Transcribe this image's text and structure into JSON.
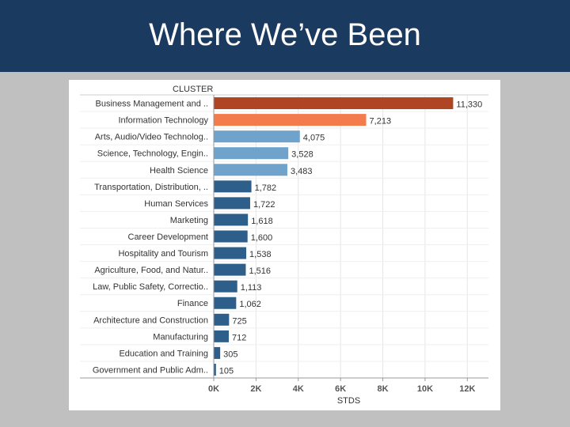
{
  "slide": {
    "title": "Where We’ve Been"
  },
  "chart_data": {
    "type": "bar",
    "orientation": "horizontal",
    "column_header": "CLUSTER",
    "xlabel": "STDS",
    "xlim": [
      0,
      13000
    ],
    "x_ticks": [
      0,
      2000,
      4000,
      6000,
      8000,
      10000,
      12000
    ],
    "x_tick_labels": [
      "0K",
      "2K",
      "4K",
      "6K",
      "8K",
      "10K",
      "12K"
    ],
    "grid": true,
    "categories": [
      "Business Management and ..",
      "Information Technology",
      "Arts, Audio/Video Technolog..",
      "Science, Technology, Engin..",
      "Health Science",
      "Transportation, Distribution, ..",
      "Human Services",
      "Marketing",
      "Career Development",
      "Hospitality and Tourism",
      "Agriculture, Food, and Natur..",
      "Law, Public Safety, Correctio..",
      "Finance",
      "Architecture and Construction",
      "Manufacturing",
      "Education and Training",
      "Government and Public Adm.."
    ],
    "values": [
      11330,
      7213,
      4075,
      3528,
      3483,
      1782,
      1722,
      1618,
      1600,
      1538,
      1516,
      1113,
      1062,
      725,
      712,
      305,
      105
    ],
    "value_labels": [
      "11,330",
      "7,213",
      "4,075",
      "3,528",
      "3,483",
      "1,782",
      "1,722",
      "1,618",
      "1,600",
      "1,538",
      "1,516",
      "1,113",
      "1,062",
      "725",
      "712",
      "305",
      "105"
    ],
    "bar_colors": [
      "#b04524",
      "#f47c4c",
      "#6fa3cb",
      "#6fa3cb",
      "#6fa3cb",
      "#2e5f8a",
      "#2e5f8a",
      "#2e5f8a",
      "#2e5f8a",
      "#2e5f8a",
      "#2e5f8a",
      "#2e5f8a",
      "#2e5f8a",
      "#2e5f8a",
      "#2e5f8a",
      "#2e5f8a",
      "#2e5f8a"
    ]
  }
}
